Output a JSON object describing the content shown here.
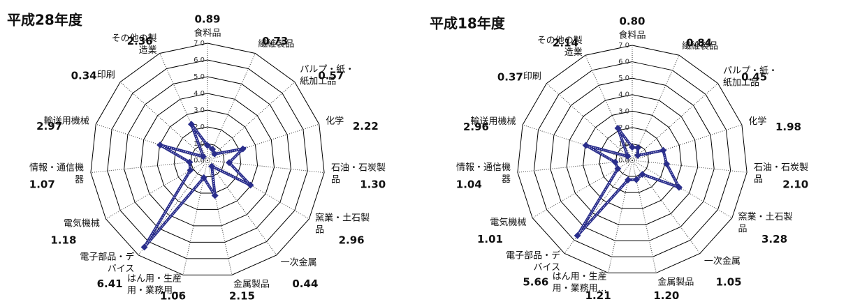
{
  "chart_data": [
    {
      "type": "radar",
      "title": "平成28年度",
      "categories": [
        [
          "食料品"
        ],
        [
          "繊維製品"
        ],
        [
          "パルプ・紙・",
          "紙加工品"
        ],
        [
          "化学"
        ],
        [
          "石油・石炭製",
          "品"
        ],
        [
          "窯業・土石製",
          "品"
        ],
        [
          "一次金属"
        ],
        [
          "金属製品"
        ],
        [
          "はん用・生産",
          "用・業務用…"
        ],
        [
          "電子部品・デ",
          "バイス"
        ],
        [
          "電気機械"
        ],
        [
          "情報・通信機",
          "器"
        ],
        [
          "輸送用機械"
        ],
        [
          "印刷"
        ],
        [
          "その他の製",
          "造業"
        ]
      ],
      "values": [
        0.89,
        0.73,
        0.57,
        2.22,
        1.3,
        2.96,
        0.44,
        2.15,
        1.06,
        6.41,
        1.18,
        1.07,
        2.97,
        0.34,
        2.36
      ],
      "value_labels": [
        "0.89",
        "0.73",
        "0.57",
        "2.22",
        "1.30",
        "2.96",
        "0.44",
        "2.15",
        "1.06",
        "6.41",
        "1.18",
        "1.07",
        "2.97",
        "0.34",
        "2.36"
      ],
      "color": "#2a2e8c",
      "rlim": [
        0,
        7
      ],
      "rticks": [
        {
          "value": 0,
          "label": "0.0"
        },
        {
          "value": 1,
          "label": "1.0"
        },
        {
          "value": 2,
          "label": "2.0"
        },
        {
          "value": 3,
          "label": "3.0"
        },
        {
          "value": 4,
          "label": "4.0"
        },
        {
          "value": 5,
          "label": "5.0"
        },
        {
          "value": 6,
          "label": "6.0"
        },
        {
          "value": 7,
          "label": "7.0"
        }
      ]
    },
    {
      "type": "radar",
      "title": "平成18年度",
      "categories": [
        [
          "食料品"
        ],
        [
          "繊維製品"
        ],
        [
          "パルプ・紙・",
          "紙加工品"
        ],
        [
          "化学"
        ],
        [
          "石油・石炭製",
          "品"
        ],
        [
          "窯業・土石製",
          "品"
        ],
        [
          "一次金属"
        ],
        [
          "金属製品"
        ],
        [
          "はん用・生産",
          "用・業務用…"
        ],
        [
          "電子部品・デ",
          "バイス"
        ],
        [
          "電気機械"
        ],
        [
          "情報・通信機",
          "器"
        ],
        [
          "輸送用機械"
        ],
        [
          "印刷"
        ],
        [
          "その他の製",
          "造業"
        ]
      ],
      "values": [
        0.8,
        0.84,
        0.45,
        1.98,
        2.1,
        3.28,
        1.05,
        1.2,
        1.21,
        5.66,
        1.01,
        1.04,
        2.96,
        0.37,
        2.14
      ],
      "value_labels": [
        "0.80",
        "0.84",
        "0.45",
        "1.98",
        "2.10",
        "3.28",
        "1.05",
        "1.20",
        "1.21",
        "5.66",
        "1.01",
        "1.04",
        "2.96",
        "0.37",
        "2.14"
      ],
      "color": "#2a2e8c",
      "rlim": [
        0,
        7
      ],
      "rticks": [
        {
          "value": 0,
          "label": "0.0"
        },
        {
          "value": 1,
          "label": "1.0"
        },
        {
          "value": 2,
          "label": "2.0"
        },
        {
          "value": 3,
          "label": "3.0"
        },
        {
          "value": 4,
          "label": "4.0"
        },
        {
          "value": 5,
          "label": "5.0"
        },
        {
          "value": 6,
          "label": "6.0"
        },
        {
          "value": 7,
          "label": "7.0"
        }
      ]
    }
  ]
}
